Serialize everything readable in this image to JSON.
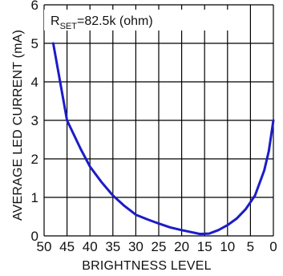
{
  "chart_data": {
    "type": "line",
    "title": "",
    "annotation": {
      "prefix": "R",
      "subscript": "SET",
      "suffix": "=82.5k (ohm)"
    },
    "xlabel": "BRIGHTNESS LEVEL",
    "ylabel": "AVERAGE LED CURRENT (mA)",
    "xlim": [
      50,
      0
    ],
    "ylim": [
      0,
      6
    ],
    "x_reversed": true,
    "xticks": [
      50,
      45,
      40,
      35,
      30,
      25,
      20,
      15,
      10,
      5,
      0
    ],
    "yticks": [
      0,
      1,
      2,
      3,
      4,
      5,
      6
    ],
    "grid": true,
    "series": [
      {
        "color": "#1c1cc8",
        "x": [
          48,
          45,
          42,
          40,
          37.5,
          35,
          32.5,
          30,
          27.5,
          25,
          22.5,
          20,
          18,
          16,
          14,
          12,
          10,
          8,
          6,
          4,
          2,
          1,
          0
        ],
        "y": [
          5.0,
          3.0,
          2.25,
          1.8,
          1.4,
          1.05,
          0.78,
          0.55,
          0.43,
          0.32,
          0.22,
          0.15,
          0.1,
          0.05,
          0.06,
          0.15,
          0.28,
          0.45,
          0.7,
          1.05,
          1.7,
          2.2,
          3.0
        ]
      }
    ]
  }
}
